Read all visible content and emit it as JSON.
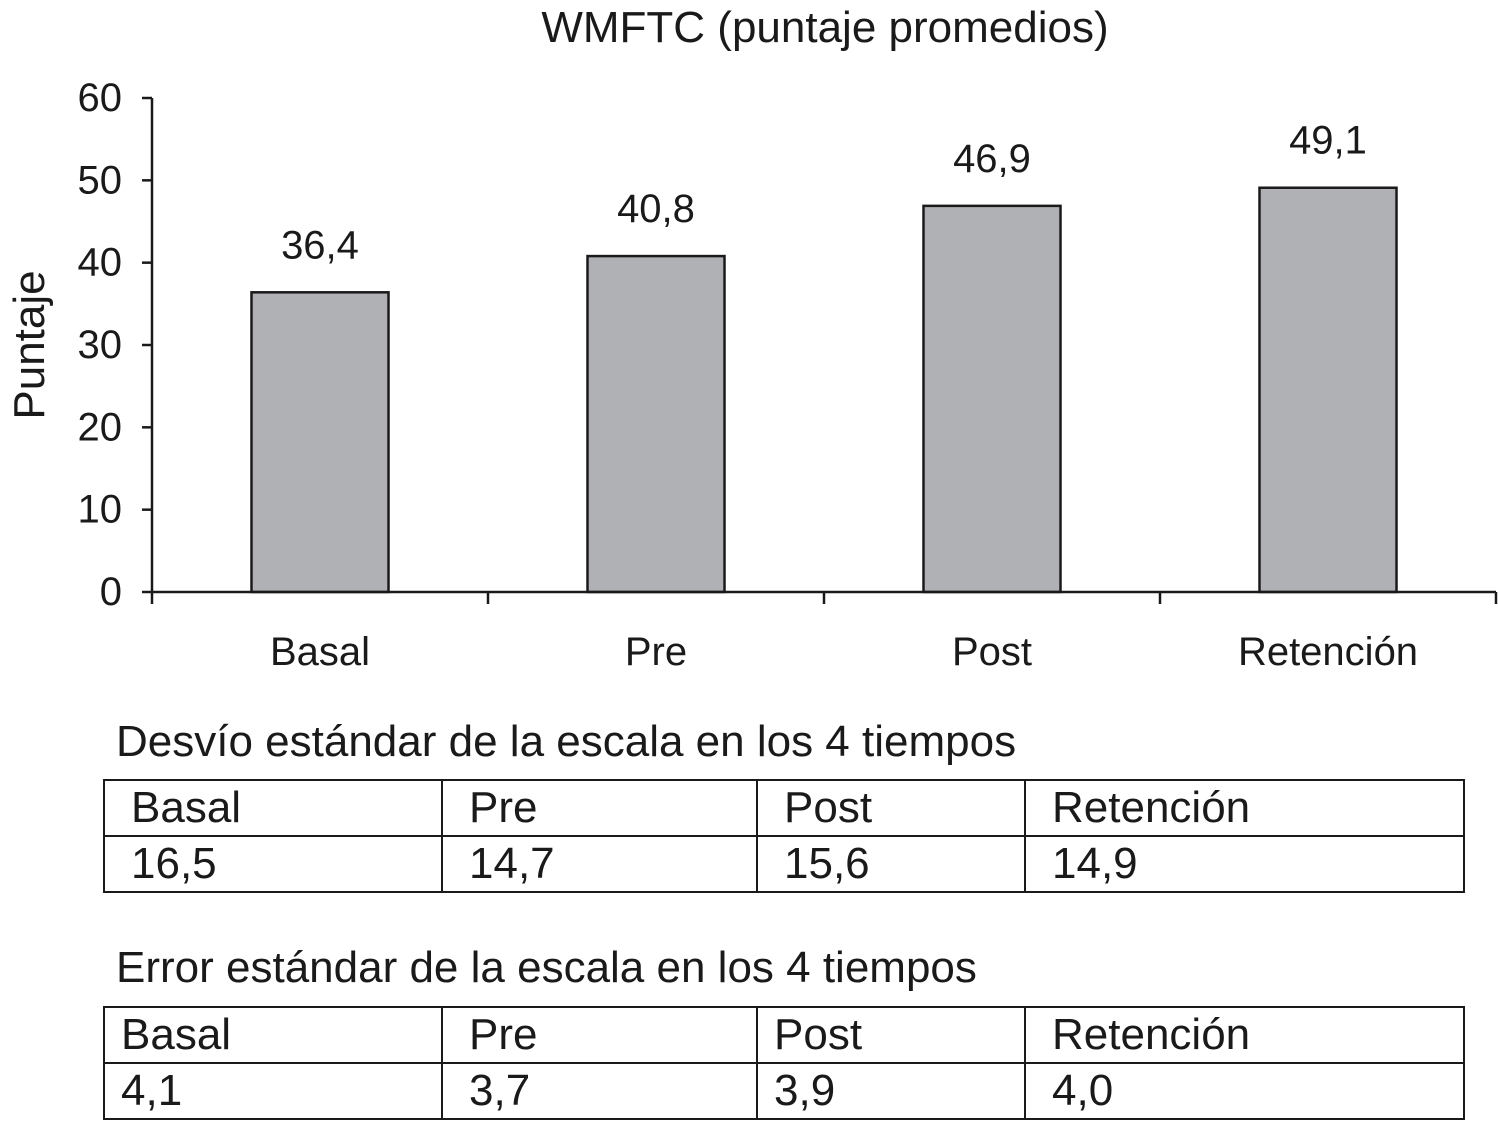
{
  "chart_data": {
    "type": "bar",
    "title": "WMFTC (puntaje promedios)",
    "xlabel": "",
    "ylabel": "Puntaje",
    "categories": [
      "Basal",
      "Pre",
      "Post",
      "Retención"
    ],
    "values": [
      36.4,
      40.8,
      46.9,
      49.1
    ],
    "value_labels": [
      "36,4",
      "40,8",
      "46,9",
      "49,1"
    ],
    "ylim": [
      0,
      60
    ],
    "yticks": [
      "0",
      "10",
      "20",
      "30",
      "40",
      "50",
      "60"
    ],
    "grid": false,
    "legend": "none",
    "bar_color": "#b0b1b4",
    "bar_edge_color": "#1a1a1a"
  },
  "sd_table": {
    "caption": "Desvío estándar de la escala en los 4 tiempos",
    "headers": [
      "Basal",
      "Pre",
      "Post",
      "Retención"
    ],
    "values": [
      "16,5",
      "14,7",
      "15,6",
      "14,9"
    ]
  },
  "se_table": {
    "caption": "Error estándar de la escala en los 4 tiempos",
    "headers": [
      "Basal",
      "Pre",
      "Post",
      "Retención"
    ],
    "values": [
      "4,1",
      "3,7",
      "3,9",
      "4,0"
    ]
  }
}
